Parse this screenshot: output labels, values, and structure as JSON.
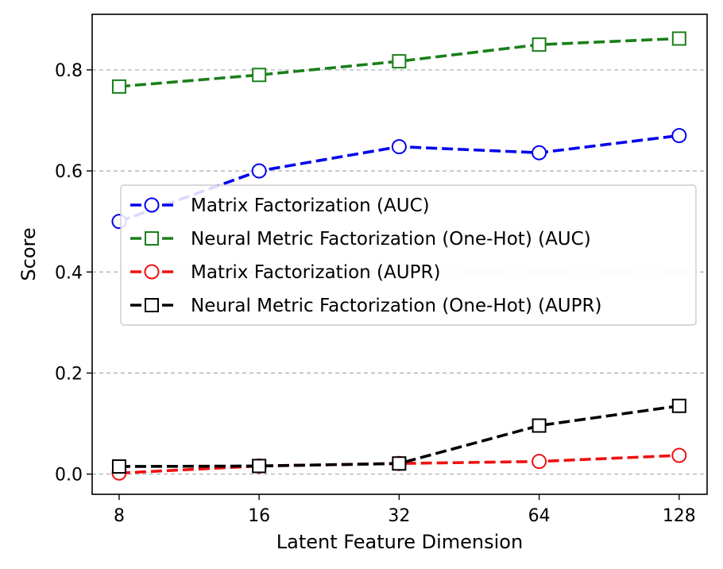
{
  "chart_data": {
    "type": "line",
    "title": "",
    "xlabel": "Latent Feature Dimension",
    "ylabel": "Score",
    "x_scale": "log2",
    "categories": [
      "8",
      "16",
      "32",
      "64",
      "128"
    ],
    "x": [
      8,
      16,
      32,
      64,
      128
    ],
    "xlim": [
      7,
      147
    ],
    "ylim": [
      -0.04,
      0.91
    ],
    "yticks": [
      0.0,
      0.2,
      0.4,
      0.6,
      0.8
    ],
    "ytick_labels": [
      "0.0",
      "0.2",
      "0.4",
      "0.6",
      "0.8"
    ],
    "grid": "horizontal dashed",
    "legend_position": "center-left",
    "series": [
      {
        "name": "Matrix Factorization (AUC)",
        "color": "#0000ee",
        "marker": "circle",
        "values": [
          0.5,
          0.6,
          0.648,
          0.636,
          0.67
        ]
      },
      {
        "name": "Neural Metric Factorization (One-Hot) (AUC)",
        "color": "#1a7f1a",
        "marker": "square",
        "values": [
          0.767,
          0.79,
          0.817,
          0.85,
          0.862
        ]
      },
      {
        "name": "Matrix Factorization (AUPR)",
        "color": "#ee1111",
        "marker": "circle",
        "values": [
          0.002,
          0.016,
          0.021,
          0.025,
          0.037
        ]
      },
      {
        "name": "Neural Metric Factorization (One-Hot) (AUPR)",
        "color": "#000000",
        "marker": "square",
        "values": [
          0.015,
          0.016,
          0.021,
          0.096,
          0.135
        ]
      }
    ]
  }
}
